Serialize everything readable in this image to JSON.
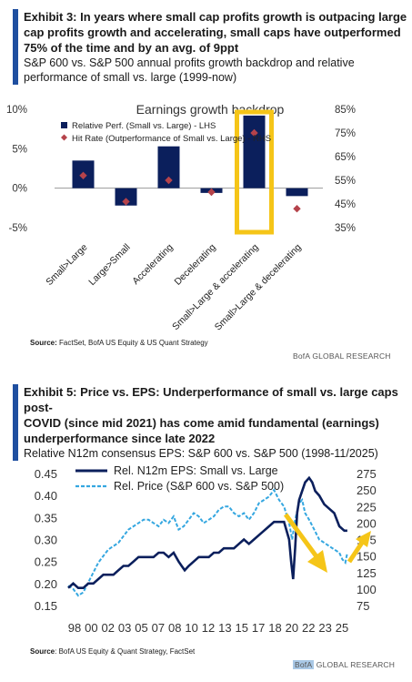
{
  "exhibit3": {
    "title_line1": "Exhibit 3: In years where small cap profits growth is outpacing large",
    "title_line2": "cap profits growth and accelerating, small caps have outperformed",
    "title_line3": "75% of the time and by an avg. of 9ppt",
    "subtitle_line1": "S&P 600 vs. S&P 500 annual profits growth backdrop and relative",
    "subtitle_line2": "performance of small vs. large (1999-now)",
    "source_label": "Source:",
    "source_text": " FactSet, BofA US Equity & US Quant Strategy",
    "brand": "BofA GLOBAL RESEARCH"
  },
  "exhibit5": {
    "title_line1": "Exhibit 5: Price vs. EPS: Underperformance of small vs. large caps post-",
    "title_line2": "COVID (since mid 2021) has come amid fundamental (earnings)",
    "title_line3": "underperformance since late 2022",
    "subtitle_line1": "Relative N12m consensus EPS: S&P 600 vs. S&P 500 (1998-11/2025)",
    "source_label": "Source",
    "source_text": ": BofA US Equity & Quant Strategy, FactSet",
    "brand_box": "BofA",
    "brand_rest": " GLOBAL RESEARCH"
  },
  "chart_data": [
    {
      "type": "bar",
      "title": "Earnings growth backdrop",
      "categories": [
        "Small>Large",
        "Large>Small",
        "Accelerating",
        "Decelerating",
        "Small>Large & accelerating",
        "Small>Large & decelerating"
      ],
      "series": [
        {
          "name": "Relative Perf. (Small vs. Large) - LHS",
          "type": "bar",
          "axis": "left",
          "color": "#0b1f5c",
          "values": [
            3.5,
            -2.2,
            5.3,
            -0.6,
            9.2,
            -1.0
          ]
        },
        {
          "name": "Hit Rate (Outperformance of Small vs. Large) - RHS",
          "type": "marker",
          "axis": "right",
          "color": "#b5434b",
          "values": [
            57,
            46,
            55,
            50,
            75,
            43
          ]
        }
      ],
      "y_left": {
        "ticks": [
          "10%",
          "5%",
          "0%",
          "-5%"
        ],
        "values": [
          10,
          5,
          0,
          -5
        ],
        "range": [
          -5,
          10
        ]
      },
      "y_right": {
        "ticks": [
          "85%",
          "75%",
          "65%",
          "55%",
          "45%",
          "35%"
        ],
        "values": [
          85,
          75,
          65,
          55,
          45,
          35
        ],
        "range": [
          35,
          85
        ]
      },
      "highlight_category": "Small>Large & accelerating",
      "highlight_color": "#f5c518"
    },
    {
      "type": "line",
      "x_ticks": [
        "98",
        "00",
        "02",
        "03",
        "05",
        "07",
        "08",
        "10",
        "12",
        "13",
        "15",
        "17",
        "18",
        "20",
        "22",
        "23",
        "25"
      ],
      "x_range": [
        1998,
        2025.9
      ],
      "y_left": {
        "ticks": [
          "0.45",
          "0.40",
          "0.35",
          "0.30",
          "0.25",
          "0.20",
          "0.15"
        ],
        "values": [
          0.45,
          0.4,
          0.35,
          0.3,
          0.25,
          0.2,
          0.15
        ],
        "range": [
          0.15,
          0.45
        ]
      },
      "y_right": {
        "ticks": [
          "275",
          "250",
          "225",
          "200",
          "175",
          "150",
          "125",
          "100",
          "75"
        ],
        "values": [
          275,
          250,
          225,
          200,
          175,
          150,
          125,
          100,
          75
        ],
        "range": [
          75,
          275
        ]
      },
      "series": [
        {
          "name": "Rel. N12m EPS: Small vs. Large",
          "axis": "left",
          "style": "solid",
          "color": "#0b1f5c",
          "x": [
            1998.0,
            1998.5,
            1999.0,
            1999.5,
            2000.0,
            2000.5,
            2001.0,
            2001.5,
            2002.0,
            2002.5,
            2003.0,
            2003.5,
            2004.0,
            2004.5,
            2005.0,
            2005.5,
            2006.0,
            2006.5,
            2007.0,
            2007.5,
            2008.0,
            2008.5,
            2009.0,
            2009.3,
            2009.6,
            2010.0,
            2010.5,
            2011.0,
            2011.5,
            2012.0,
            2012.5,
            2013.0,
            2013.5,
            2014.0,
            2014.5,
            2015.0,
            2015.5,
            2016.0,
            2016.5,
            2017.0,
            2017.5,
            2018.0,
            2018.5,
            2019.0,
            2019.5,
            2020.0,
            2020.2,
            2020.4,
            2020.6,
            2020.8,
            2021.0,
            2021.3,
            2021.6,
            2022.0,
            2022.3,
            2022.6,
            2023.0,
            2023.5,
            2024.0,
            2024.5,
            2025.0,
            2025.5,
            2025.8
          ],
          "y": [
            0.19,
            0.2,
            0.19,
            0.19,
            0.2,
            0.2,
            0.21,
            0.22,
            0.22,
            0.22,
            0.23,
            0.24,
            0.24,
            0.25,
            0.26,
            0.26,
            0.26,
            0.26,
            0.27,
            0.27,
            0.26,
            0.27,
            0.25,
            0.24,
            0.23,
            0.24,
            0.25,
            0.26,
            0.26,
            0.26,
            0.27,
            0.27,
            0.28,
            0.28,
            0.28,
            0.29,
            0.3,
            0.29,
            0.3,
            0.31,
            0.32,
            0.33,
            0.34,
            0.34,
            0.34,
            0.3,
            0.25,
            0.21,
            0.28,
            0.36,
            0.39,
            0.41,
            0.43,
            0.44,
            0.43,
            0.41,
            0.4,
            0.38,
            0.37,
            0.36,
            0.33,
            0.32,
            0.32
          ]
        },
        {
          "name": "Rel. Price (S&P 600 vs. S&P 500)",
          "axis": "right",
          "style": "dashed",
          "color": "#35a7e0",
          "x": [
            1998.0,
            1998.5,
            1999.0,
            1999.5,
            2000.0,
            2000.5,
            2001.0,
            2001.5,
            2002.0,
            2002.5,
            2003.0,
            2003.5,
            2004.0,
            2004.5,
            2005.0,
            2005.5,
            2006.0,
            2006.5,
            2007.0,
            2007.5,
            2008.0,
            2008.5,
            2009.0,
            2009.5,
            2010.0,
            2010.5,
            2011.0,
            2011.5,
            2012.0,
            2012.5,
            2013.0,
            2013.5,
            2014.0,
            2014.5,
            2015.0,
            2015.5,
            2016.0,
            2016.5,
            2017.0,
            2017.5,
            2018.0,
            2018.5,
            2019.0,
            2019.5,
            2020.0,
            2020.3,
            2020.6,
            2021.0,
            2021.3,
            2021.6,
            2022.0,
            2022.5,
            2023.0,
            2023.5,
            2024.0,
            2024.5,
            2025.0,
            2025.3,
            2025.6,
            2025.8
          ],
          "y": [
            105,
            100,
            90,
            95,
            110,
            125,
            140,
            150,
            160,
            165,
            170,
            180,
            190,
            195,
            200,
            205,
            205,
            200,
            195,
            205,
            200,
            210,
            190,
            195,
            205,
            215,
            210,
            200,
            205,
            210,
            220,
            225,
            225,
            215,
            210,
            215,
            205,
            215,
            230,
            235,
            240,
            250,
            235,
            225,
            200,
            175,
            205,
            230,
            235,
            215,
            205,
            190,
            175,
            170,
            165,
            160,
            155,
            145,
            140,
            155
          ]
        }
      ]
    }
  ]
}
